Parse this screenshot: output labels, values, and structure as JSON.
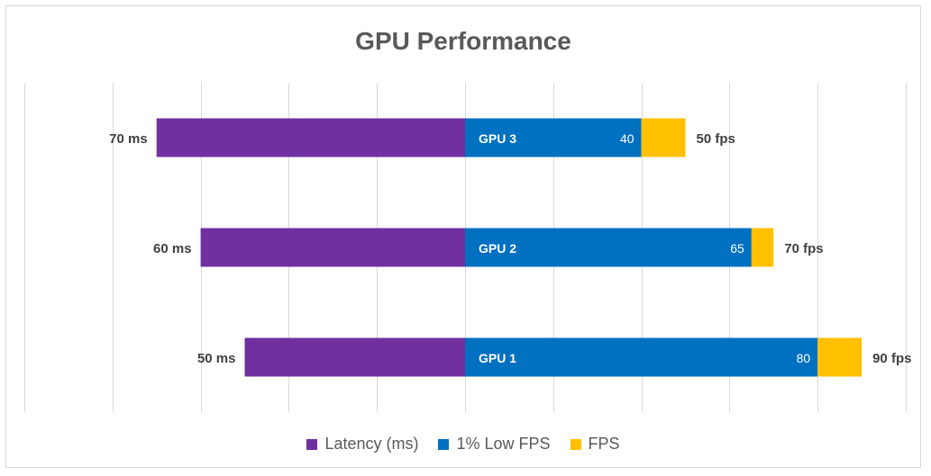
{
  "chart_data": {
    "type": "bar",
    "orientation": "horizontal-diverging",
    "title": "GPU Performance",
    "categories": [
      "GPU 1",
      "GPU 2",
      "GPU 3"
    ],
    "series": [
      {
        "name": "Latency (ms)",
        "color": "#7030a0",
        "values": [
          50,
          60,
          70
        ],
        "direction": "left"
      },
      {
        "name": "1% Low FPS",
        "color": "#0070c0",
        "values": [
          80,
          65,
          40
        ],
        "direction": "right"
      },
      {
        "name": "FPS",
        "color": "#ffc000",
        "values": [
          90,
          70,
          50
        ],
        "direction": "right",
        "stacked_total": true
      }
    ],
    "latency_labels": [
      "50 ms",
      "60 ms",
      "70 ms"
    ],
    "low_fps_labels": [
      "80",
      "65",
      "40"
    ],
    "fps_labels": [
      "90 fps",
      "70 fps",
      "50 fps"
    ],
    "xlim": [
      -100,
      100
    ],
    "grid": true,
    "legend_position": "bottom"
  }
}
